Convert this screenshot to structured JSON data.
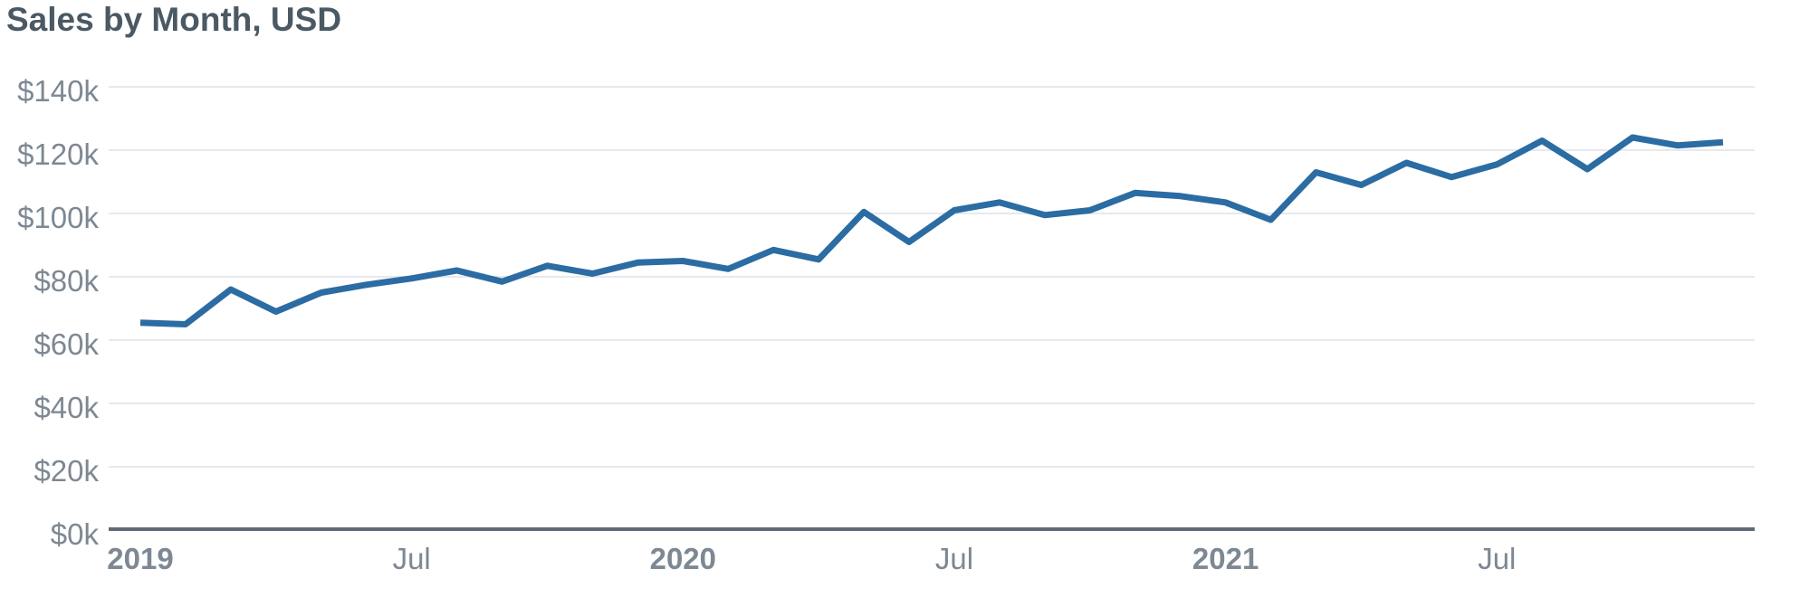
{
  "header": {
    "title": "Sales by Month, USD"
  },
  "chart_data": {
    "type": "line",
    "title": "Sales by Month, USD",
    "xlabel": "",
    "ylabel": "",
    "unit": "USD (thousands)",
    "legend": "none",
    "grid": "horizontal",
    "x": [
      "Jan 2019",
      "Feb 2019",
      "Mar 2019",
      "Apr 2019",
      "May 2019",
      "Jun 2019",
      "Jul 2019",
      "Aug 2019",
      "Sep 2019",
      "Oct 2019",
      "Nov 2019",
      "Dec 2019",
      "Jan 2020",
      "Feb 2020",
      "Mar 2020",
      "Apr 2020",
      "May 2020",
      "Jun 2020",
      "Jul 2020",
      "Aug 2020",
      "Sep 2020",
      "Oct 2020",
      "Nov 2020",
      "Dec 2020",
      "Jan 2021",
      "Feb 2021",
      "Mar 2021",
      "Apr 2021",
      "May 2021",
      "Jun 2021",
      "Jul 2021",
      "Aug 2021",
      "Sep 2021",
      "Oct 2021",
      "Nov 2021",
      "Dec 2021"
    ],
    "series": [
      {
        "name": "Sales",
        "values_usd_k": [
          65.5,
          65,
          76,
          69,
          75,
          77.5,
          79.5,
          82,
          78.5,
          83.5,
          81,
          84.5,
          85,
          82.5,
          88.5,
          85.5,
          100.5,
          91,
          101,
          103.5,
          99.5,
          101,
          106.5,
          105.5,
          103.5,
          98,
          113,
          109,
          116,
          111.5,
          115.5,
          123,
          114,
          124,
          121.5,
          122.5
        ]
      }
    ],
    "ylim": [
      0,
      140
    ],
    "y_tick_step": 20,
    "y_ticks": [
      {
        "value": 140,
        "label": "$140k"
      },
      {
        "value": 120,
        "label": "$120k"
      },
      {
        "value": 100,
        "label": "$100k"
      },
      {
        "value": 80,
        "label": "$80k"
      },
      {
        "value": 60,
        "label": "$60k"
      },
      {
        "value": 40,
        "label": "$40k"
      },
      {
        "value": 20,
        "label": "$20k"
      },
      {
        "value": 0,
        "label": "$0k"
      }
    ],
    "x_ticks": [
      {
        "month_index": 0,
        "label": "2019",
        "bold": true
      },
      {
        "month_index": 6,
        "label": "Jul",
        "bold": false
      },
      {
        "month_index": 12,
        "label": "2020",
        "bold": true
      },
      {
        "month_index": 18,
        "label": "Jul",
        "bold": false
      },
      {
        "month_index": 24,
        "label": "2021",
        "bold": true
      },
      {
        "month_index": 30,
        "label": "Jul",
        "bold": false
      }
    ],
    "colors": {
      "line": "#2b6ca3",
      "gridline": "#e6e9ed",
      "axis_line": "#5f6b76",
      "tick_label": "#7d8893",
      "title": "#4a5963"
    }
  }
}
